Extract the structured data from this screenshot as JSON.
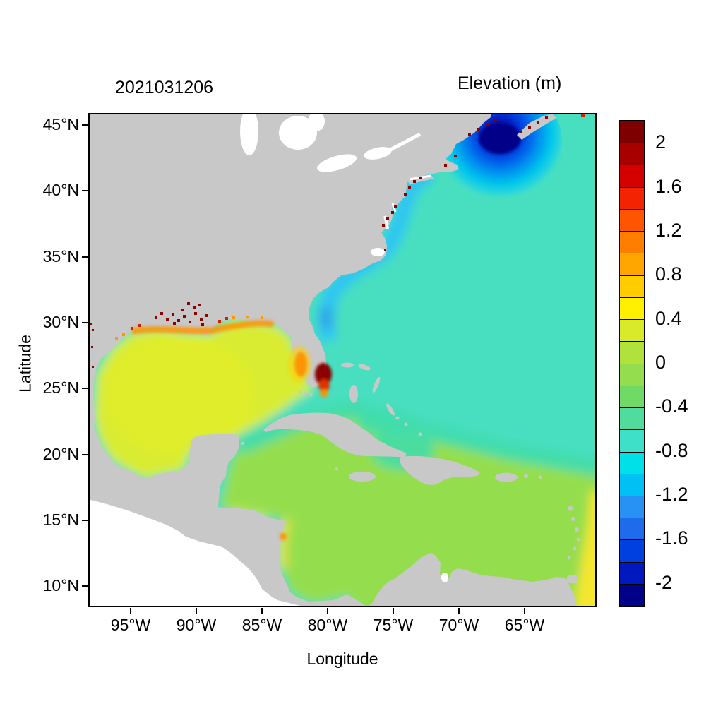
{
  "chart_data": {
    "type": "heatmap",
    "timestamp": "2021031206",
    "title": "Elevation (m)",
    "xlabel": "Longitude",
    "ylabel": "Latitude",
    "x_ticks": [
      {
        "label": "95°W",
        "value": 95
      },
      {
        "label": "90°W",
        "value": 90
      },
      {
        "label": "85°W",
        "value": 85
      },
      {
        "label": "80°W",
        "value": 80
      },
      {
        "label": "75°W",
        "value": 75
      },
      {
        "label": "70°W",
        "value": 70
      },
      {
        "label": "65°W",
        "value": 65
      }
    ],
    "y_ticks": [
      {
        "label": "45°N",
        "value": 45
      },
      {
        "label": "40°N",
        "value": 40
      },
      {
        "label": "35°N",
        "value": 35
      },
      {
        "label": "30°N",
        "value": 30
      },
      {
        "label": "25°N",
        "value": 25
      },
      {
        "label": "20°N",
        "value": 20
      },
      {
        "label": "15°N",
        "value": 15
      },
      {
        "label": "10°N",
        "value": 10
      }
    ],
    "x_range_deg_west": [
      98.2,
      59.5
    ],
    "y_range_deg_north": [
      8.4,
      45.9
    ],
    "colorbar": {
      "title": "Elevation (m)",
      "min": -2.2,
      "max": 2.2,
      "step": 0.2,
      "ticks": [
        {
          "label": "2",
          "value": 2
        },
        {
          "label": "1.6",
          "value": 1.6
        },
        {
          "label": "1.2",
          "value": 1.2
        },
        {
          "label": "0.8",
          "value": 0.8
        },
        {
          "label": "0.4",
          "value": 0.4
        },
        {
          "label": "0",
          "value": 0
        },
        {
          "label": "-0.4",
          "value": -0.4
        },
        {
          "label": "-0.8",
          "value": -0.8
        },
        {
          "label": "-1.2",
          "value": -1.2
        },
        {
          "label": "-1.6",
          "value": -1.6
        },
        {
          "label": "-2",
          "value": -2
        }
      ],
      "colors": [
        "#7f0000",
        "#a80000",
        "#d40000",
        "#f42400",
        "#ff5400",
        "#ff7e00",
        "#ffa600",
        "#ffcc00",
        "#fff000",
        "#d8ea2a",
        "#b0e23b",
        "#94de4e",
        "#70da66",
        "#4fdc9c",
        "#3fe0c8",
        "#00e0e8",
        "#00c0f4",
        "#2892f4",
        "#1e6cec",
        "#0040e0",
        "#0018c0",
        "#000088"
      ]
    },
    "palette": {
      "land": "#c8c8c8",
      "atlantic": "#46dfc0",
      "gulf": "#d9ec33",
      "caribbean": "#94de4e",
      "teal-band": "#3fddae",
      "coastal-cyan": "#2ec6f2",
      "surge-navy": "#000088",
      "yellow": "#f4e72e",
      "orange": "#ff9000",
      "dark-red": "#8b0000",
      "red": "#d81e00"
    },
    "regions": [
      {
        "name": "Open Atlantic (NE of Bahamas to 45N)",
        "approx_value_m": -0.4
      },
      {
        "name": "Coastal band Florida to Cape Hatteras",
        "approx_value_m": -0.8
      },
      {
        "name": "Gulf of Maine / Bay of Fundy depression",
        "approx_value_m": -2.2
      },
      {
        "name": "Gulf of Mexico",
        "approx_value_m": 0.3
      },
      {
        "name": "Caribbean Sea",
        "approx_value_m": 0.0
      },
      {
        "name": "Windward Passage / Bahamas channels",
        "approx_value_m": -0.5
      },
      {
        "name": "Southeast corner near Lesser Antilles",
        "approx_value_m": 0.5
      },
      {
        "name": "Louisiana / northern Gulf coast spots",
        "approx_value_m": 2.2
      },
      {
        "name": "Southeast Florida coastal spot",
        "approx_value_m": 2.2
      },
      {
        "name": "Mid-Atlantic estuary spots",
        "approx_value_m": 2.0
      },
      {
        "name": "Nova Scotia coastal spots",
        "approx_value_m": 2.2
      }
    ]
  }
}
